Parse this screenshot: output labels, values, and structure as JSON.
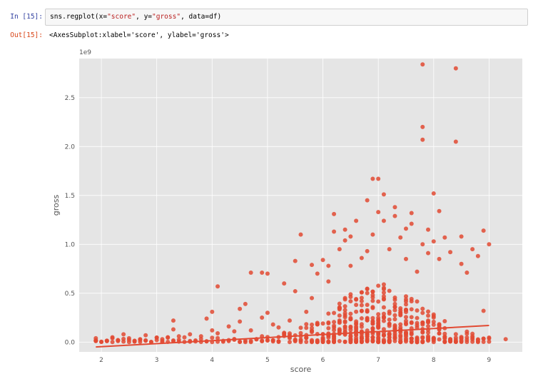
{
  "notebook": {
    "in_prompt": "In [15]:",
    "code": {
      "p1": "sns.regplot(x=",
      "s1": "\"score\"",
      "p2": ", y=",
      "s2": "\"gross\"",
      "p3": ", data=df)"
    },
    "out_prompt": "Out[15]:",
    "output_text": "<AxesSubplot:xlabel='score', ylabel='gross'>"
  },
  "colors": {
    "points": "#e24a33",
    "line": "#e24a33",
    "axes_bg": "#e5e5e5",
    "grid": "#ffffff"
  },
  "chart_data": {
    "type": "scatter",
    "xlabel": "score",
    "ylabel": "gross",
    "offset_label": "1e9",
    "xlim": [
      1.6,
      9.6
    ],
    "ylim": [
      -0.1,
      2.9
    ],
    "x_ticks": [
      2,
      3,
      4,
      5,
      6,
      7,
      8,
      9
    ],
    "y_ticks": [
      0.0,
      0.5,
      1.0,
      1.5,
      2.0,
      2.5
    ],
    "x_tick_labels": [
      "2",
      "3",
      "4",
      "5",
      "6",
      "7",
      "8",
      "9"
    ],
    "y_tick_labels": [
      "0.0",
      "0.5",
      "1.0",
      "1.5",
      "2.0",
      "2.5"
    ],
    "grid": true,
    "points": [
      [
        1.9,
        0.01
      ],
      [
        1.9,
        0.04
      ],
      [
        2.1,
        0.01
      ],
      [
        2.2,
        0.05
      ],
      [
        2.3,
        0.02
      ],
      [
        2.4,
        0.08
      ],
      [
        2.5,
        0.04
      ],
      [
        2.6,
        0.01
      ],
      [
        2.7,
        0.03
      ],
      [
        2.8,
        0.07
      ],
      [
        3.0,
        0.02
      ],
      [
        3.1,
        0.03
      ],
      [
        3.2,
        0.05
      ],
      [
        3.3,
        0.13
      ],
      [
        3.3,
        0.22
      ],
      [
        3.4,
        0.06
      ],
      [
        3.6,
        0.08
      ],
      [
        3.8,
        0.06
      ],
      [
        3.9,
        0.24
      ],
      [
        4.0,
        0.12
      ],
      [
        4.0,
        0.31
      ],
      [
        4.1,
        0.09
      ],
      [
        4.1,
        0.57
      ],
      [
        4.3,
        0.16
      ],
      [
        4.4,
        0.11
      ],
      [
        4.5,
        0.21
      ],
      [
        4.5,
        0.34
      ],
      [
        4.6,
        0.39
      ],
      [
        4.7,
        0.12
      ],
      [
        4.7,
        0.71
      ],
      [
        4.9,
        0.25
      ],
      [
        4.9,
        0.71
      ],
      [
        5.0,
        0.3
      ],
      [
        5.0,
        0.7
      ],
      [
        5.1,
        0.18
      ],
      [
        5.2,
        0.15
      ],
      [
        5.3,
        0.6
      ],
      [
        5.4,
        0.22
      ],
      [
        5.5,
        0.52
      ],
      [
        5.5,
        0.83
      ],
      [
        5.6,
        1.1
      ],
      [
        5.7,
        0.31
      ],
      [
        5.8,
        0.45
      ],
      [
        5.8,
        0.79
      ],
      [
        5.9,
        0.7
      ],
      [
        6.0,
        0.84
      ],
      [
        6.1,
        0.62
      ],
      [
        6.1,
        0.78
      ],
      [
        6.2,
        1.13
      ],
      [
        6.2,
        1.31
      ],
      [
        6.3,
        0.95
      ],
      [
        6.4,
        1.04
      ],
      [
        6.4,
        1.15
      ],
      [
        6.5,
        0.78
      ],
      [
        6.5,
        1.08
      ],
      [
        6.6,
        1.24
      ],
      [
        6.7,
        0.86
      ],
      [
        6.8,
        1.45
      ],
      [
        6.8,
        0.93
      ],
      [
        6.9,
        1.67
      ],
      [
        6.9,
        1.1
      ],
      [
        7.0,
        1.67
      ],
      [
        7.0,
        1.33
      ],
      [
        7.1,
        1.51
      ],
      [
        7.1,
        1.24
      ],
      [
        7.2,
        0.95
      ],
      [
        7.3,
        1.38
      ],
      [
        7.3,
        1.29
      ],
      [
        7.4,
        1.07
      ],
      [
        7.5,
        1.16
      ],
      [
        7.5,
        0.85
      ],
      [
        7.6,
        1.32
      ],
      [
        7.6,
        1.21
      ],
      [
        7.7,
        0.72
      ],
      [
        7.8,
        2.84
      ],
      [
        7.8,
        2.2
      ],
      [
        7.8,
        2.07
      ],
      [
        7.8,
        1.0
      ],
      [
        7.9,
        1.15
      ],
      [
        7.9,
        0.91
      ],
      [
        8.0,
        1.52
      ],
      [
        8.0,
        1.03
      ],
      [
        8.1,
        1.34
      ],
      [
        8.1,
        0.85
      ],
      [
        8.2,
        1.07
      ],
      [
        8.3,
        0.92
      ],
      [
        8.4,
        2.8
      ],
      [
        8.4,
        2.05
      ],
      [
        8.5,
        1.08
      ],
      [
        8.5,
        0.8
      ],
      [
        8.6,
        0.71
      ],
      [
        8.7,
        0.95
      ],
      [
        8.8,
        0.88
      ],
      [
        8.9,
        1.14
      ],
      [
        9.0,
        1.0
      ],
      [
        8.9,
        0.32
      ],
      [
        9.3,
        0.03
      ],
      [
        8.7,
        0.06
      ],
      [
        8.5,
        0.04
      ],
      [
        8.3,
        0.03
      ]
    ],
    "regression_line": {
      "x": [
        1.9,
        9.0
      ],
      "y": [
        -0.05,
        0.17
      ]
    }
  }
}
